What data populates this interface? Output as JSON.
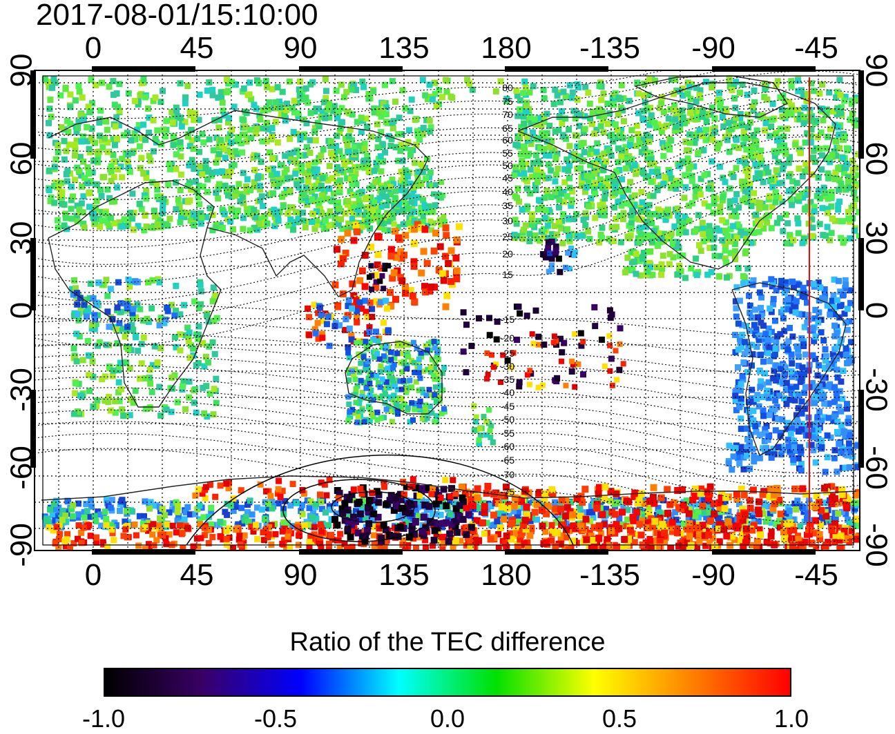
{
  "figure": {
    "timestamp": "2017-08-01/15:10:00",
    "top_lon_ticks": [
      "0",
      "45",
      "90",
      "135",
      "180",
      "-135",
      "-90",
      "-45"
    ],
    "bottom_lon_ticks": [
      "0",
      "45",
      "90",
      "135",
      "180",
      "-135",
      "-90",
      "-45"
    ],
    "left_lat_ticks": [
      "90",
      "60",
      "30",
      "0",
      "-30",
      "-60",
      "-90"
    ],
    "right_lat_ticks": [
      "90",
      "60",
      "30",
      "0",
      "-30",
      "-60",
      "-90"
    ],
    "contour_labels_north": [
      "80",
      "75",
      "70",
      "65",
      "60",
      "55",
      "50",
      "45",
      "40",
      "35",
      "30",
      "25",
      "20",
      "15"
    ],
    "contour_labels_south": [
      "-15",
      "-20",
      "-25",
      "-30",
      "-35",
      "-40",
      "-45",
      "-50",
      "-55",
      "-60",
      "-65",
      "-70",
      "-75"
    ],
    "colorbar": {
      "title": "Ratio of the TEC difference",
      "ticks": [
        "-1.0",
        "-0.5",
        "0.0",
        "0.5",
        "1.0"
      ],
      "colors": [
        "#000000",
        "#3a0066",
        "#0000ff",
        "#00ffff",
        "#00e000",
        "#ffff00",
        "#ff8000",
        "#ff0000"
      ]
    },
    "marker_line_color": "#ff0000"
  }
}
